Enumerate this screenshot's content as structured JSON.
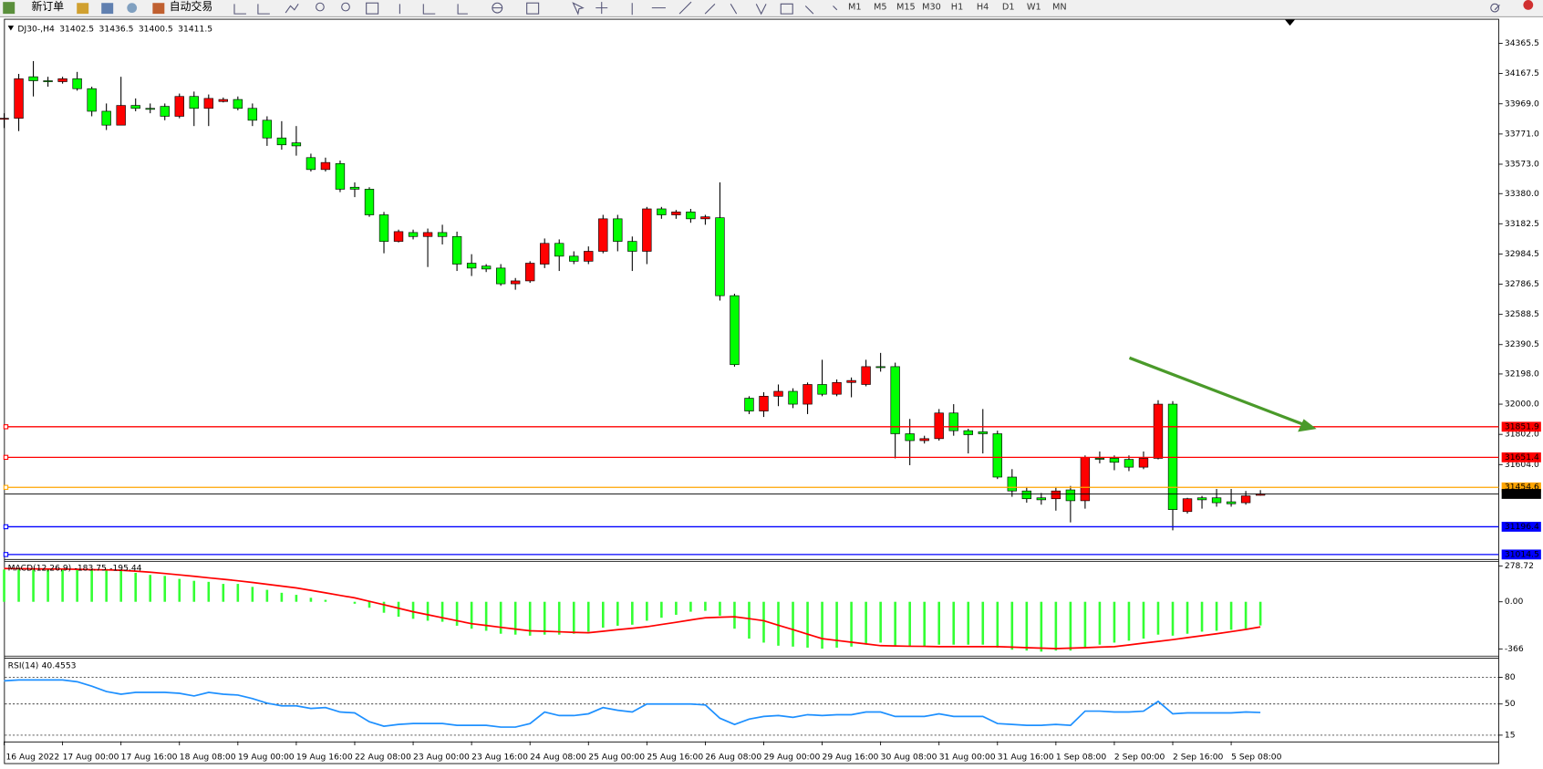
{
  "toolbar": {
    "buttons": [
      "新订单",
      "自动交易"
    ],
    "periods": [
      "M1",
      "M5",
      "M15",
      "M30",
      "H1",
      "H4",
      "D1",
      "W1",
      "MN"
    ]
  },
  "chart_data": [
    {
      "type": "candlestick",
      "title": "DJ30-,H4",
      "categories": [
        "16 Aug 2022",
        null,
        null,
        null,
        "17 Aug 00:00",
        null,
        null,
        null,
        "17 Aug 16:00",
        null,
        null,
        null,
        "18 Aug 08:00",
        null,
        null,
        null,
        "19 Aug 00:00",
        null,
        null,
        null,
        "19 Aug 16:00",
        null,
        null,
        null,
        "22 Aug 08:00",
        null,
        null,
        null,
        "23 Aug 00:00",
        null,
        null,
        null,
        "23 Aug 16:00",
        null,
        null,
        null,
        "24 Aug 08:00",
        null,
        null,
        null,
        "25 Aug 00:00",
        null,
        null,
        null,
        "25 Aug 16:00",
        null,
        null,
        null,
        "26 Aug 08:00",
        null,
        null,
        null,
        "29 Aug 00:00",
        null,
        null,
        null,
        "29 Aug 16:00",
        null,
        null,
        null,
        "30 Aug 08:00",
        null,
        null,
        null,
        "31 Aug 00:00",
        null,
        null,
        null,
        "31 Aug 16:00",
        null,
        null,
        null,
        "1 Sep 08:00",
        null,
        null,
        null,
        "2 Sep 00:00",
        null,
        null,
        null,
        "2 Sep 16:00",
        null,
        null,
        null,
        "5 Sep 08:00",
        null,
        null
      ],
      "open": [
        33874,
        33874,
        34146,
        34120,
        34114,
        34133,
        34068,
        33920,
        33829,
        33958,
        33939,
        33952,
        33887,
        34017,
        33939,
        33984,
        33997,
        33939,
        33861,
        33745,
        33713,
        33616,
        33538,
        33577,
        33422,
        33409,
        33241,
        33067,
        33125,
        33099,
        33125,
        33099,
        32924,
        32905,
        32892,
        32789,
        32808,
        32918,
        33054,
        32970,
        32937,
        33002,
        33215,
        33067,
        33002,
        33280,
        33241,
        33260,
        33215,
        33222,
        32711,
        32039,
        31955,
        32052,
        32084,
        32000,
        32129,
        32065,
        32142,
        32129,
        32246,
        32246,
        31806,
        31761,
        31774,
        31942,
        31826,
        31819,
        31806,
        31522,
        31431,
        31386,
        31380,
        31438,
        31367,
        31645,
        31645,
        31638,
        31587,
        31645,
        32000,
        31296,
        31386,
        31386,
        31360,
        31354,
        31402.5
      ],
      "high": [
        33907,
        34165,
        34249,
        34146,
        34146,
        34178,
        34081,
        33971,
        34146,
        34004,
        33971,
        33971,
        34036,
        34049,
        34030,
        34010,
        34017,
        33971,
        33887,
        33855,
        33823,
        33642,
        33616,
        33597,
        33454,
        33422,
        33260,
        33144,
        33144,
        33151,
        33176,
        33131,
        32983,
        32918,
        32918,
        32827,
        32937,
        33086,
        33080,
        33002,
        33034,
        33241,
        33241,
        33099,
        33293,
        33293,
        33273,
        33280,
        33241,
        33454,
        32724,
        32052,
        32078,
        32129,
        32104,
        32142,
        32291,
        32162,
        32175,
        32291,
        32336,
        32272,
        31903,
        31793,
        31968,
        32000,
        31839,
        31968,
        31826,
        31574,
        31457,
        31418,
        31457,
        31464,
        31664,
        31690,
        31664,
        31664,
        31690,
        32026,
        32020,
        31386,
        31399,
        31444,
        31444,
        31431,
        31436.5
      ],
      "low": [
        33810,
        33790,
        34017,
        34081,
        34101,
        34055,
        33887,
        33797,
        33829,
        33920,
        33907,
        33861,
        33874,
        33823,
        33823,
        33978,
        33926,
        33823,
        33693,
        33668,
        33629,
        33525,
        33525,
        33390,
        33357,
        33228,
        32989,
        33060,
        33080,
        32899,
        33047,
        32873,
        32840,
        32866,
        32776,
        32750,
        32795,
        32892,
        32873,
        32918,
        32918,
        32989,
        33002,
        32873,
        32918,
        33215,
        33215,
        33189,
        33176,
        32679,
        32246,
        31935,
        31916,
        31987,
        31974,
        31935,
        32052,
        32052,
        32045,
        32117,
        32213,
        31645,
        31600,
        31742,
        31761,
        31793,
        31677,
        31677,
        31509,
        31393,
        31354,
        31341,
        31302,
        31225,
        31315,
        31612,
        31567,
        31561,
        31574,
        31638,
        31173,
        31283,
        31315,
        31328,
        31328,
        31341,
        31400.5
      ],
      "close": [
        33874,
        34133,
        34120,
        34118,
        34133,
        34068,
        33920,
        33829,
        33958,
        33939,
        33933,
        33887,
        34017,
        33939,
        34004,
        33997,
        33939,
        33861,
        33745,
        33700,
        33693,
        33538,
        33584,
        33409,
        33409,
        33241,
        33067,
        33131,
        33099,
        33125,
        33099,
        32918,
        32892,
        32886,
        32789,
        32808,
        32924,
        33054,
        32970,
        32937,
        33002,
        33215,
        33067,
        33002,
        33280,
        33241,
        33260,
        33215,
        33228,
        32711,
        32259,
        31955,
        32052,
        32084,
        32000,
        32129,
        32065,
        32142,
        32155,
        32246,
        32244,
        31806,
        31761,
        31774,
        31942,
        31826,
        31800,
        31806,
        31522,
        31431,
        31380,
        31373,
        31431,
        31367,
        31651,
        31643,
        31619,
        31587,
        31645,
        32000,
        31309,
        31380,
        31373,
        31354,
        31347,
        31399,
        31411.5
      ],
      "up_color": "#ff0000",
      "down_color": "#00ff00",
      "ylim": [
        30985,
        34520
      ],
      "yticks": [
        34365.5,
        34167.5,
        {
          "value": 33969,
          "label": "33969.0"
        },
        {
          "value": 33771,
          "label": "33771.0"
        },
        {
          "value": 33573,
          "label": "33573.0"
        },
        {
          "value": 33380,
          "label": "33380.0"
        },
        33182.5,
        32984.5,
        32786.5,
        32588.5,
        32390.5,
        {
          "value": 32198,
          "label": "32198.0"
        },
        {
          "value": 32000,
          "label": "32000.0"
        },
        {
          "value": 31802,
          "label": "31802.0"
        },
        {
          "value": 31604,
          "label": "31604.0"
        }
      ],
      "levels": [
        {
          "value": 31851.9,
          "color": "#ff0000"
        },
        {
          "value": 31651.4,
          "color": "#ff0000"
        },
        {
          "value": 31454.6,
          "color": "#ffa500"
        },
        {
          "value": 31196.4,
          "color": "#0000ff"
        },
        {
          "value": 31014.5,
          "color": "#0000ff"
        }
      ]
    },
    {
      "type": "macd",
      "title": "MACD(12,26,9)",
      "histogram_color": "#33ff33",
      "histogram": [
        250,
        252,
        255,
        256,
        257,
        257,
        256,
        255,
        250,
        225,
        209,
        201,
        178,
        163,
        155,
        139,
        139,
        116,
        93,
        70,
        54,
        31,
        15,
        0,
        -15,
        -46,
        -85,
        -116,
        -132,
        -147,
        -155,
        -186,
        -209,
        -225,
        -248,
        -255,
        -263,
        -255,
        -255,
        -248,
        -232,
        -201,
        -186,
        -178,
        -147,
        -124,
        -101,
        -77,
        -70,
        -108,
        -209,
        -286,
        -317,
        -341,
        -348,
        -356,
        -364,
        -356,
        -348,
        -333,
        -317,
        -341,
        -348,
        -348,
        -333,
        -333,
        -333,
        -333,
        -356,
        -372,
        -379,
        -387,
        -379,
        -379,
        -356,
        -333,
        -317,
        -302,
        -286,
        -255,
        -263,
        -248,
        -232,
        -225,
        -217,
        -209,
        -183.75
      ],
      "signal_color": "#ff0000",
      "signal": [
        258,
        257,
        256,
        255,
        254,
        252,
        250,
        248,
        245,
        238,
        230,
        220,
        209,
        198,
        186,
        175,
        163,
        150,
        136,
        122,
        108,
        89,
        70,
        50,
        31,
        4,
        -23,
        -50,
        -77,
        -100,
        -124,
        -147,
        -170,
        -184,
        -198,
        -212,
        -225,
        -229,
        -233,
        -237,
        -240,
        -229,
        -217,
        -206,
        -194,
        -176,
        -159,
        -141,
        -124,
        -120,
        -116,
        -131,
        -147,
        -182,
        -216,
        -251,
        -286,
        -300,
        -314,
        -327,
        -341,
        -343,
        -345,
        -346,
        -348,
        -348,
        -348,
        -348,
        -348,
        -352,
        -356,
        -360,
        -364,
        -360,
        -356,
        -352,
        -348,
        -335,
        -321,
        -308,
        -294,
        -279,
        -263,
        -248,
        -232,
        -214,
        -195.44
      ],
      "ylim": [
        -418,
        317
      ],
      "yticks": [
        278.72,
        {
          "value": 0,
          "label": "0.00"
        },
        -366
      ]
    },
    {
      "type": "line",
      "title": "RSI(14)",
      "color": "#1e90ff",
      "values": [
        76,
        77,
        77,
        77,
        77,
        75,
        70,
        64,
        61,
        63,
        63,
        63,
        62,
        59,
        63,
        61,
        60,
        56,
        51,
        48,
        48,
        45,
        46,
        41,
        40,
        30,
        25,
        27,
        28,
        28,
        28,
        26,
        26,
        26,
        24,
        24,
        28,
        41,
        37,
        37,
        39,
        46,
        43,
        41,
        50,
        50,
        50,
        50,
        49,
        34,
        27,
        33,
        36,
        37,
        35,
        38,
        37,
        38,
        38,
        41,
        41,
        36,
        36,
        36,
        39,
        36,
        36,
        36,
        28,
        27,
        26,
        26,
        27,
        26,
        42,
        42,
        41,
        41,
        42,
        53,
        39,
        40,
        40,
        40,
        40,
        41,
        40.4553
      ],
      "ylim": [
        8,
        101
      ],
      "yticks": [
        80,
        50,
        15
      ],
      "grid": true
    }
  ]
}
